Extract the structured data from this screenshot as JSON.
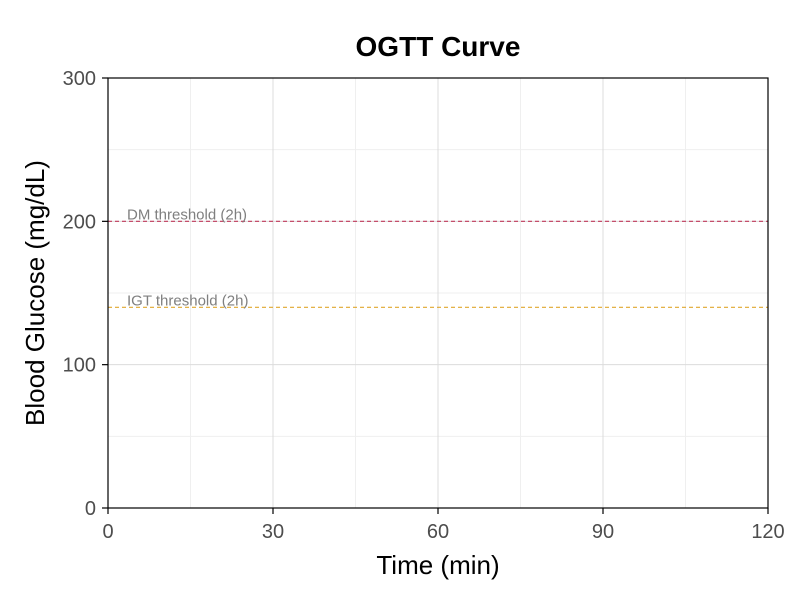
{
  "chart_data": {
    "type": "line",
    "title": "OGTT Curve",
    "xlabel": "Time (min)",
    "ylabel": "Blood Glucose (mg/dL)",
    "xlim": [
      0,
      120
    ],
    "ylim": [
      0,
      300
    ],
    "x_ticks": [
      0,
      30,
      60,
      90,
      120
    ],
    "y_ticks": [
      0,
      100,
      200,
      300
    ],
    "x_minor_ticks": [
      15,
      45,
      75,
      105
    ],
    "y_minor_ticks": [
      50,
      150,
      250
    ],
    "grid": true,
    "series": [],
    "reference_lines": [
      {
        "label": "DM threshold (2h)",
        "y": 200,
        "color": "#c0395a",
        "style": "dashed"
      },
      {
        "label": "IGT threshold (2h)",
        "y": 140,
        "color": "#e0a82e",
        "style": "dashed"
      }
    ],
    "colors": {
      "grid_major": "#dcdcdc",
      "grid_minor": "#efefef",
      "axis": "#000000"
    }
  }
}
